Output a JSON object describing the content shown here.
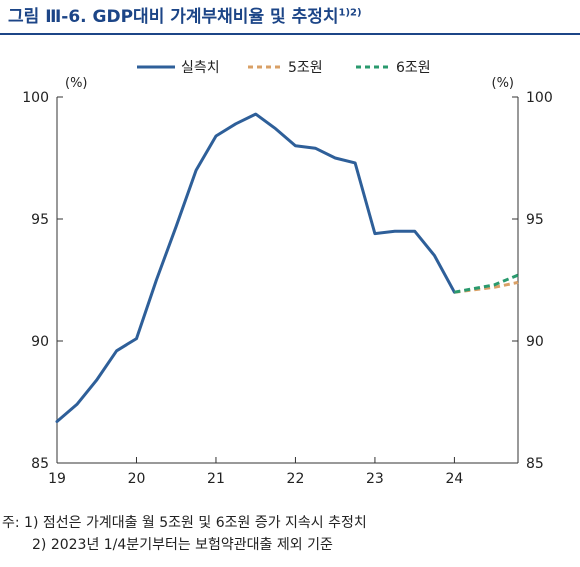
{
  "title": {
    "text": "그림 Ⅲ-6. GDP대비 가계부채비율 및 추정치",
    "superscript": "1)2)"
  },
  "chart_data": {
    "type": "line",
    "y_unit_left": "(%)",
    "y_unit_right": "(%)",
    "ylim": [
      85,
      100
    ],
    "yticks": [
      85,
      90,
      95,
      100
    ],
    "xticks": [
      {
        "label": "19",
        "x": 2019.0
      },
      {
        "label": "20",
        "x": 2020.0
      },
      {
        "label": "21",
        "x": 2021.0
      },
      {
        "label": "22",
        "x": 2022.0
      },
      {
        "label": "23",
        "x": 2023.0
      },
      {
        "label": "24",
        "x": 2024.0
      }
    ],
    "xlim": [
      2019.0,
      2024.8
    ],
    "legend_position": "top-center",
    "series": [
      {
        "name": "실측치",
        "style": "solid",
        "color": "#2e5f99",
        "x": [
          2019.0,
          2019.25,
          2019.5,
          2019.75,
          2020.0,
          2020.25,
          2020.5,
          2020.75,
          2021.0,
          2021.25,
          2021.5,
          2021.75,
          2022.0,
          2022.25,
          2022.5,
          2022.75,
          2023.0,
          2023.25,
          2023.5,
          2023.75,
          2024.0
        ],
        "y": [
          86.7,
          87.4,
          88.4,
          89.6,
          90.1,
          92.5,
          94.7,
          97.0,
          98.4,
          98.9,
          99.3,
          98.7,
          98.0,
          97.9,
          97.5,
          97.3,
          94.4,
          94.5,
          94.5,
          93.5,
          92.0
        ]
      },
      {
        "name": "5조원",
        "style": "dashed",
        "color": "#d9a066",
        "x": [
          2024.0,
          2024.25,
          2024.5,
          2024.8
        ],
        "y": [
          92.0,
          92.1,
          92.2,
          92.4
        ]
      },
      {
        "name": "6조원",
        "style": "dashed",
        "color": "#2a9a6e",
        "x": [
          2024.0,
          2024.25,
          2024.5,
          2024.8
        ],
        "y": [
          92.0,
          92.15,
          92.3,
          92.7
        ]
      }
    ]
  },
  "notes": [
    "주: 1) 점선은 가계대출 월 5조원 및 6조원 증가 지속시 추정치",
    "2) 2023년 1/4분기부터는 보험약관대출 제외 기준"
  ]
}
